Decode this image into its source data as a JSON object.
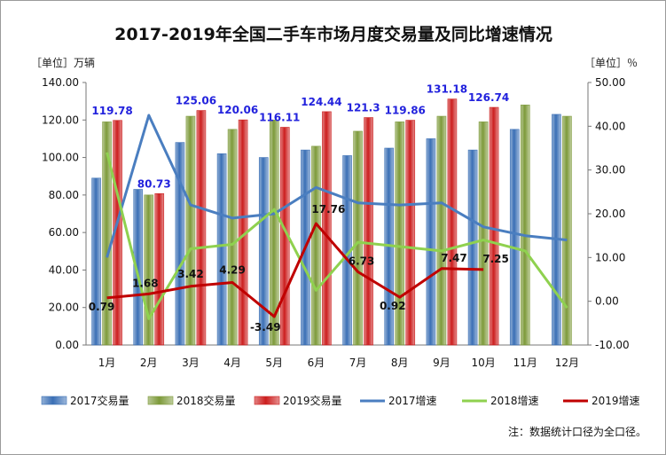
{
  "chart_data": {
    "type": "bar",
    "title": "2017-2019年全国二手车市场月度交易量及同比增速情况",
    "y_left_unit": "［单位］万辆",
    "y_right_unit": "［单位］％",
    "ylim_left": [
      0,
      140
    ],
    "yticks_left": [
      "0.00",
      "20.00",
      "40.00",
      "60.00",
      "80.00",
      "100.00",
      "120.00",
      "140.00"
    ],
    "ylim_right": [
      -10,
      50
    ],
    "yticks_right": [
      "-10.00",
      "0.00",
      "10.00",
      "20.00",
      "30.00",
      "40.00",
      "50.00"
    ],
    "categories": [
      "1月",
      "2月",
      "3月",
      "4月",
      "5月",
      "6月",
      "7月",
      "8月",
      "9月",
      "10月",
      "11月",
      "12月"
    ],
    "bar_series": [
      {
        "name": "2017交易量",
        "color": "#3a6fb5",
        "values": [
          89,
          83,
          108,
          102,
          100,
          104,
          101,
          105,
          110,
          104,
          115,
          123
        ]
      },
      {
        "name": "2018交易量",
        "color": "#7d9a3a",
        "values": [
          119,
          80,
          122,
          115,
          120,
          106,
          114,
          119,
          122,
          119,
          128,
          122
        ]
      },
      {
        "name": "2019交易量",
        "color": "#cc1e1e",
        "values": [
          119.78,
          80.73,
          125.06,
          120.06,
          116.11,
          124.44,
          121.3,
          119.86,
          131.18,
          126.74,
          null,
          null
        ]
      }
    ],
    "bar_labels_2019": [
      "119.78",
      "80.73",
      "125.06",
      "120.06",
      "116.11",
      "124.44",
      "121.3",
      "119.86",
      "131.18",
      "126.74"
    ],
    "line_series": [
      {
        "name": "2017增速",
        "color": "#4a7ec0",
        "values": [
          10,
          42.5,
          22,
          19,
          20,
          26,
          22.5,
          22,
          22.5,
          17,
          15,
          14
        ]
      },
      {
        "name": "2018增速",
        "color": "#8fd14f",
        "values": [
          34,
          -4,
          12,
          13,
          21,
          2.5,
          13.5,
          12.5,
          11.5,
          14,
          11.5,
          -1.5
        ]
      },
      {
        "name": "2019增速",
        "color": "#c00000",
        "values": [
          0.79,
          1.68,
          3.42,
          4.29,
          -3.49,
          17.76,
          6.73,
          0.92,
          7.47,
          7.25,
          null,
          null
        ]
      }
    ],
    "line_labels_2019": [
      "0.79",
      "1.68",
      "3.42",
      "4.29",
      "-3.49",
      "17.76",
      "6.73",
      "0.92",
      "7.47",
      "7.25"
    ],
    "legend_position": "bottom",
    "grid": false
  },
  "note": "注：数据统计口径为全口径。"
}
